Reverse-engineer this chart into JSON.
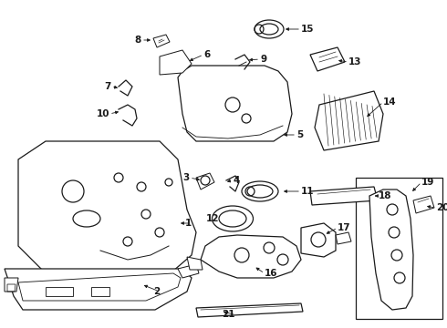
{
  "bg_color": "#ffffff",
  "fig_width": 4.9,
  "fig_height": 3.6,
  "dpi": 100,
  "line_color": "#1a1a1a",
  "lw": 0.9,
  "label_font_size": 7.5
}
